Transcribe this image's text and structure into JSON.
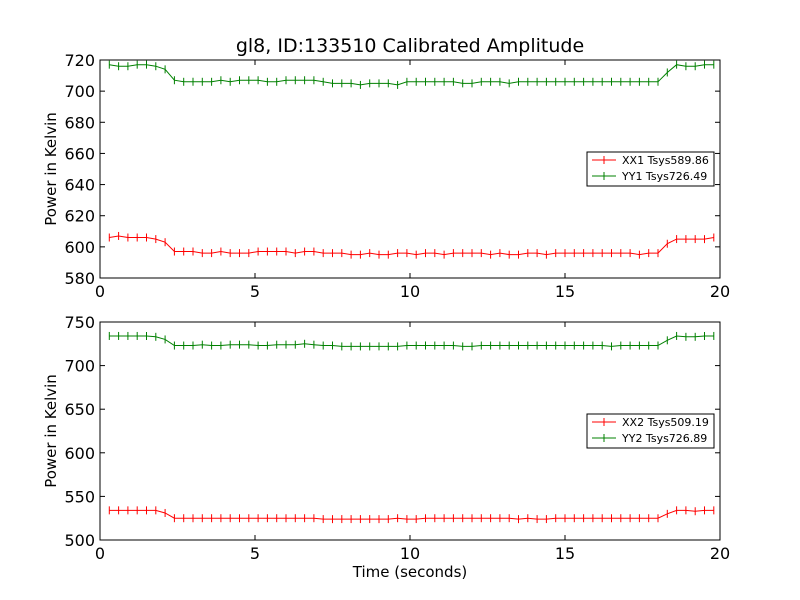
{
  "chart_data": [
    {
      "type": "line",
      "title": "gl8, ID:133510 Calibrated Amplitude",
      "xlabel": "",
      "ylabel": "Power in Kelvin",
      "xlim": [
        0,
        20
      ],
      "ylim": [
        580,
        720
      ],
      "xticks": [
        "0",
        "5",
        "10",
        "15",
        "20"
      ],
      "yticks": [
        "580",
        "600",
        "620",
        "640",
        "660",
        "680",
        "700",
        "720"
      ],
      "grid": false,
      "legend_position": "center-right",
      "x": [
        0.3,
        0.6,
        0.9,
        1.2,
        1.5,
        1.8,
        2.1,
        2.4,
        2.7,
        3.0,
        3.3,
        3.6,
        3.9,
        4.2,
        4.5,
        4.8,
        5.1,
        5.4,
        5.7,
        6.0,
        6.3,
        6.6,
        6.9,
        7.2,
        7.5,
        7.8,
        8.1,
        8.4,
        8.7,
        9.0,
        9.3,
        9.6,
        9.9,
        10.2,
        10.5,
        10.8,
        11.1,
        11.4,
        11.7,
        12.0,
        12.3,
        12.6,
        12.9,
        13.2,
        13.5,
        13.8,
        14.1,
        14.4,
        14.7,
        15.0,
        15.3,
        15.6,
        15.9,
        16.2,
        16.5,
        16.8,
        17.1,
        17.4,
        17.7,
        18.0,
        18.3,
        18.6,
        18.9,
        19.2,
        19.5,
        19.8
      ],
      "series": [
        {
          "name": "XX1 Tsys589.86",
          "color": "#ff0000",
          "values": [
            606,
            607,
            606,
            606,
            606,
            605,
            603,
            597,
            597,
            597,
            596,
            596,
            597,
            596,
            596,
            596,
            597,
            597,
            597,
            597,
            596,
            597,
            597,
            596,
            596,
            596,
            595,
            595,
            596,
            595,
            595,
            596,
            596,
            595,
            596,
            596,
            595,
            596,
            596,
            596,
            596,
            595,
            596,
            595,
            595,
            596,
            596,
            595,
            596,
            596,
            596,
            596,
            596,
            596,
            596,
            596,
            596,
            595,
            596,
            596,
            602,
            605,
            605,
            605,
            605,
            606
          ]
        },
        {
          "name": "YY1 Tsys726.49",
          "color": "#008000",
          "values": [
            717,
            716,
            716,
            717,
            717,
            716,
            714,
            707,
            706,
            706,
            706,
            706,
            707,
            706,
            707,
            707,
            707,
            706,
            706,
            707,
            707,
            707,
            707,
            706,
            705,
            705,
            705,
            704,
            705,
            705,
            705,
            704,
            706,
            706,
            706,
            706,
            706,
            706,
            705,
            705,
            706,
            706,
            706,
            705,
            706,
            706,
            706,
            706,
            706,
            706,
            706,
            706,
            706,
            706,
            706,
            706,
            706,
            706,
            706,
            706,
            712,
            717,
            716,
            716,
            717,
            717
          ]
        }
      ]
    },
    {
      "type": "line",
      "title": "",
      "xlabel": "Time (seconds)",
      "ylabel": "Power in Kelvin",
      "xlim": [
        0,
        20
      ],
      "ylim": [
        500,
        750
      ],
      "xticks": [
        "0",
        "5",
        "10",
        "15",
        "20"
      ],
      "yticks": [
        "500",
        "550",
        "600",
        "650",
        "700",
        "750"
      ],
      "grid": false,
      "legend_position": "center-right",
      "x": [
        0.3,
        0.6,
        0.9,
        1.2,
        1.5,
        1.8,
        2.1,
        2.4,
        2.7,
        3.0,
        3.3,
        3.6,
        3.9,
        4.2,
        4.5,
        4.8,
        5.1,
        5.4,
        5.7,
        6.0,
        6.3,
        6.6,
        6.9,
        7.2,
        7.5,
        7.8,
        8.1,
        8.4,
        8.7,
        9.0,
        9.3,
        9.6,
        9.9,
        10.2,
        10.5,
        10.8,
        11.1,
        11.4,
        11.7,
        12.0,
        12.3,
        12.6,
        12.9,
        13.2,
        13.5,
        13.8,
        14.1,
        14.4,
        14.7,
        15.0,
        15.3,
        15.6,
        15.9,
        16.2,
        16.5,
        16.8,
        17.1,
        17.4,
        17.7,
        18.0,
        18.3,
        18.6,
        18.9,
        19.2,
        19.5,
        19.8
      ],
      "series": [
        {
          "name": "XX2 Tsys509.19",
          "color": "#ff0000",
          "values": [
            534,
            534,
            534,
            534,
            534,
            534,
            531,
            525,
            525,
            525,
            525,
            525,
            525,
            525,
            525,
            525,
            525,
            525,
            525,
            525,
            525,
            525,
            525,
            524,
            524,
            524,
            524,
            524,
            524,
            524,
            524,
            525,
            524,
            524,
            525,
            525,
            525,
            525,
            525,
            525,
            525,
            525,
            525,
            525,
            524,
            525,
            524,
            524,
            525,
            525,
            525,
            525,
            525,
            525,
            525,
            525,
            525,
            525,
            525,
            525,
            530,
            534,
            534,
            533,
            534,
            534
          ]
        },
        {
          "name": "YY2 Tsys726.89",
          "color": "#008000",
          "values": [
            734,
            734,
            734,
            734,
            734,
            733,
            730,
            723,
            723,
            723,
            724,
            723,
            723,
            724,
            724,
            724,
            723,
            723,
            724,
            724,
            724,
            725,
            724,
            723,
            723,
            722,
            722,
            722,
            722,
            722,
            722,
            722,
            723,
            723,
            723,
            723,
            723,
            723,
            722,
            722,
            723,
            723,
            723,
            723,
            723,
            723,
            723,
            723,
            723,
            723,
            723,
            723,
            723,
            723,
            722,
            723,
            723,
            723,
            723,
            723,
            729,
            734,
            733,
            733,
            734,
            734
          ]
        }
      ]
    }
  ]
}
